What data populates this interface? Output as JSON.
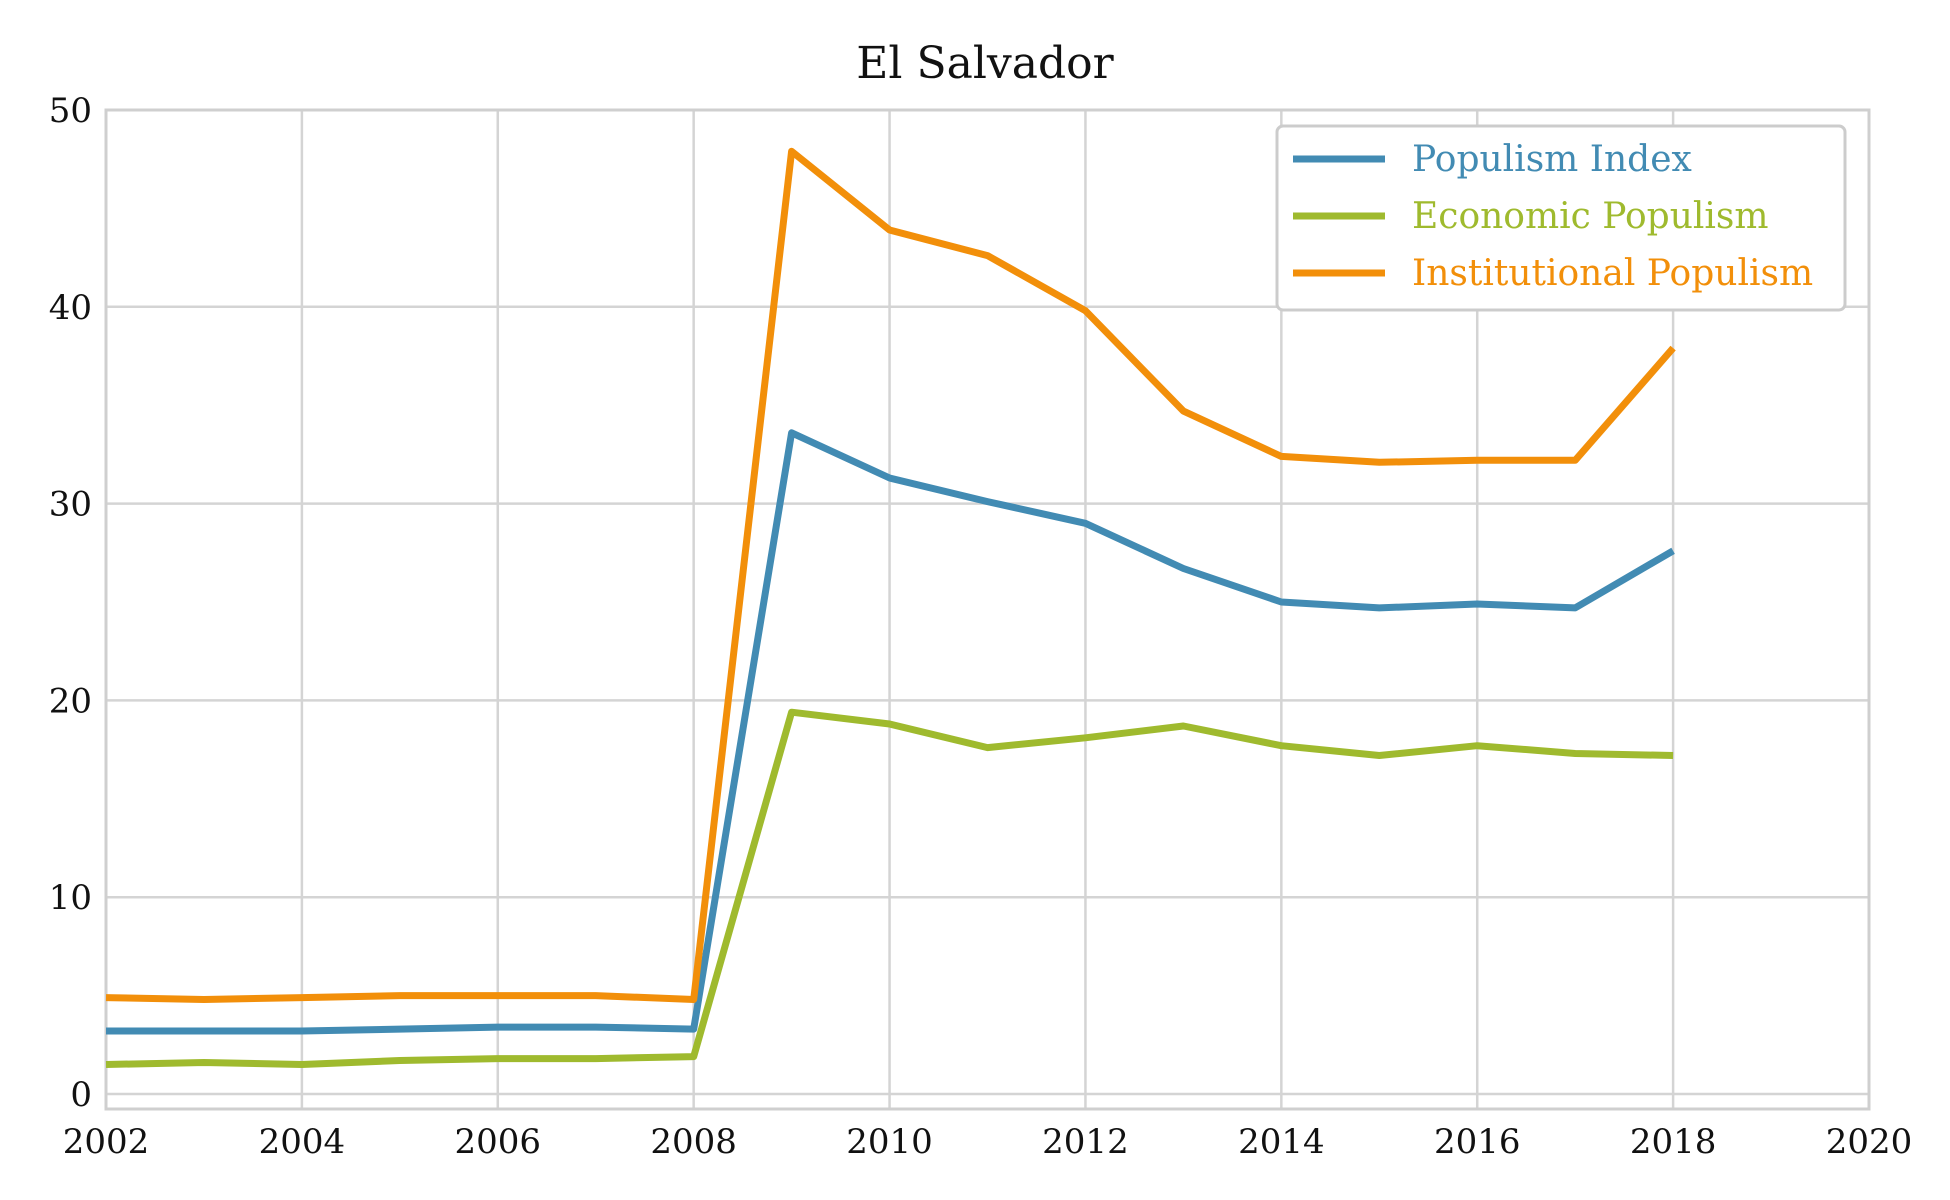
{
  "chart_data": {
    "type": "line",
    "title": "El Salvador",
    "xlabel": "",
    "ylabel": "",
    "xlim": [
      2002,
      2020
    ],
    "ylim": [
      0,
      50
    ],
    "x_ticks": [
      "2002",
      "2004",
      "2006",
      "2008",
      "2010",
      "2012",
      "2014",
      "2016",
      "2018",
      "2020"
    ],
    "y_ticks": [
      "0",
      "10",
      "20",
      "30",
      "40",
      "50"
    ],
    "grid": true,
    "legend_position": "top-right",
    "x": [
      2002,
      2003,
      2004,
      2005,
      2006,
      2007,
      2008,
      2009,
      2010,
      2011,
      2012,
      2013,
      2014,
      2015,
      2016,
      2017,
      2018
    ],
    "series": [
      {
        "name": "Populism Index",
        "color": "#428bb3",
        "values": [
          3.2,
          3.2,
          3.2,
          3.3,
          3.4,
          3.4,
          3.3,
          33.6,
          31.3,
          30.1,
          29.0,
          26.7,
          25.0,
          24.7,
          24.9,
          24.7,
          27.6
        ]
      },
      {
        "name": "Economic Populism",
        "color": "#9fba2e",
        "values": [
          1.5,
          1.6,
          1.5,
          1.7,
          1.8,
          1.8,
          1.9,
          19.4,
          18.8,
          17.6,
          18.1,
          18.7,
          17.7,
          17.2,
          17.7,
          17.3,
          17.2
        ]
      },
      {
        "name": "Institutional Populism",
        "color": "#f28f0a",
        "values": [
          4.9,
          4.8,
          4.9,
          5.0,
          5.0,
          5.0,
          4.8,
          47.9,
          43.9,
          42.6,
          39.8,
          34.7,
          32.4,
          32.1,
          32.2,
          32.2,
          37.9
        ]
      }
    ]
  }
}
